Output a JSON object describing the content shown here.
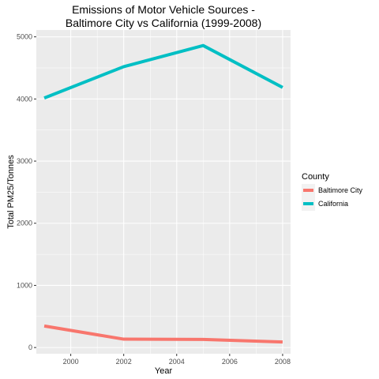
{
  "chart_data": {
    "type": "line",
    "title_line1": "Emissions of Motor Vehicle Sources -",
    "title_line2": "Baltimore City vs California (1999-2008)",
    "xlabel": "Year",
    "ylabel": "Total PM25/Tonnes",
    "xlim": [
      1998.7,
      2008.3
    ],
    "ylim": [
      -100,
      5110
    ],
    "x_ticks": [
      2000,
      2002,
      2004,
      2006,
      2008
    ],
    "y_ticks": [
      0,
      1000,
      2000,
      3000,
      4000,
      5000
    ],
    "grid": true,
    "legend": {
      "title": "County",
      "position": "right"
    },
    "series": [
      {
        "name": "Baltimore City",
        "color": "#F8766D",
        "x": [
          1999,
          2002,
          2005,
          2008
        ],
        "values": [
          346.8,
          134.3,
          130.4,
          88.3
        ]
      },
      {
        "name": "California",
        "color": "#00BFC4",
        "x": [
          1999,
          2002,
          2005,
          2008
        ],
        "values": [
          4016,
          4520,
          4860,
          4185
        ]
      }
    ],
    "panel_bg": "#EBEBEB",
    "grid_color": "#FFFFFF"
  }
}
